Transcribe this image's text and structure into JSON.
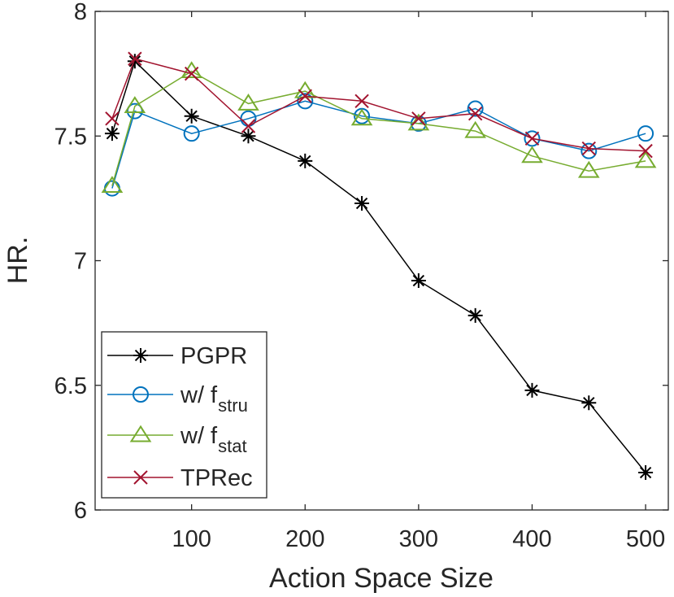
{
  "chart_data": {
    "type": "line",
    "xlabel": "Action Space Size",
    "ylabel": "HR.",
    "xlim": [
      15,
      520
    ],
    "ylim": [
      6,
      8
    ],
    "xticks": [
      100,
      200,
      300,
      400,
      500
    ],
    "yticks": [
      6,
      6.5,
      7,
      7.5,
      8
    ],
    "ytick_labels": [
      "6",
      "6.5",
      "7",
      "7.5",
      "8"
    ],
    "grid": false,
    "legend_position": "bottom-left",
    "x": [
      30,
      50,
      100,
      150,
      200,
      250,
      300,
      350,
      400,
      450,
      500
    ],
    "series": [
      {
        "name": "PGPR",
        "legend_main": "PGPR",
        "legend_sub": "",
        "marker": "star",
        "color": "#000000",
        "values": [
          7.51,
          7.8,
          7.58,
          7.5,
          7.4,
          7.23,
          6.92,
          6.78,
          6.48,
          6.43,
          6.15
        ]
      },
      {
        "name": "w/ f_stru",
        "legend_main": "w/ f",
        "legend_sub": "stru",
        "marker": "circle",
        "color": "#0072BD",
        "values": [
          7.29,
          7.6,
          7.51,
          7.57,
          7.64,
          7.58,
          7.55,
          7.61,
          7.49,
          7.44,
          7.51
        ]
      },
      {
        "name": "w/ f_stat",
        "legend_main": "w/ f",
        "legend_sub": "stat",
        "marker": "triangle",
        "color": "#77AC30",
        "values": [
          7.3,
          7.62,
          7.76,
          7.63,
          7.68,
          7.57,
          7.55,
          7.52,
          7.42,
          7.36,
          7.4
        ]
      },
      {
        "name": "TPRec",
        "legend_main": "TPRec",
        "legend_sub": "",
        "marker": "x",
        "color": "#A2142F",
        "values": [
          7.57,
          7.81,
          7.75,
          7.54,
          7.66,
          7.64,
          7.57,
          7.59,
          7.49,
          7.45,
          7.44
        ]
      }
    ]
  }
}
